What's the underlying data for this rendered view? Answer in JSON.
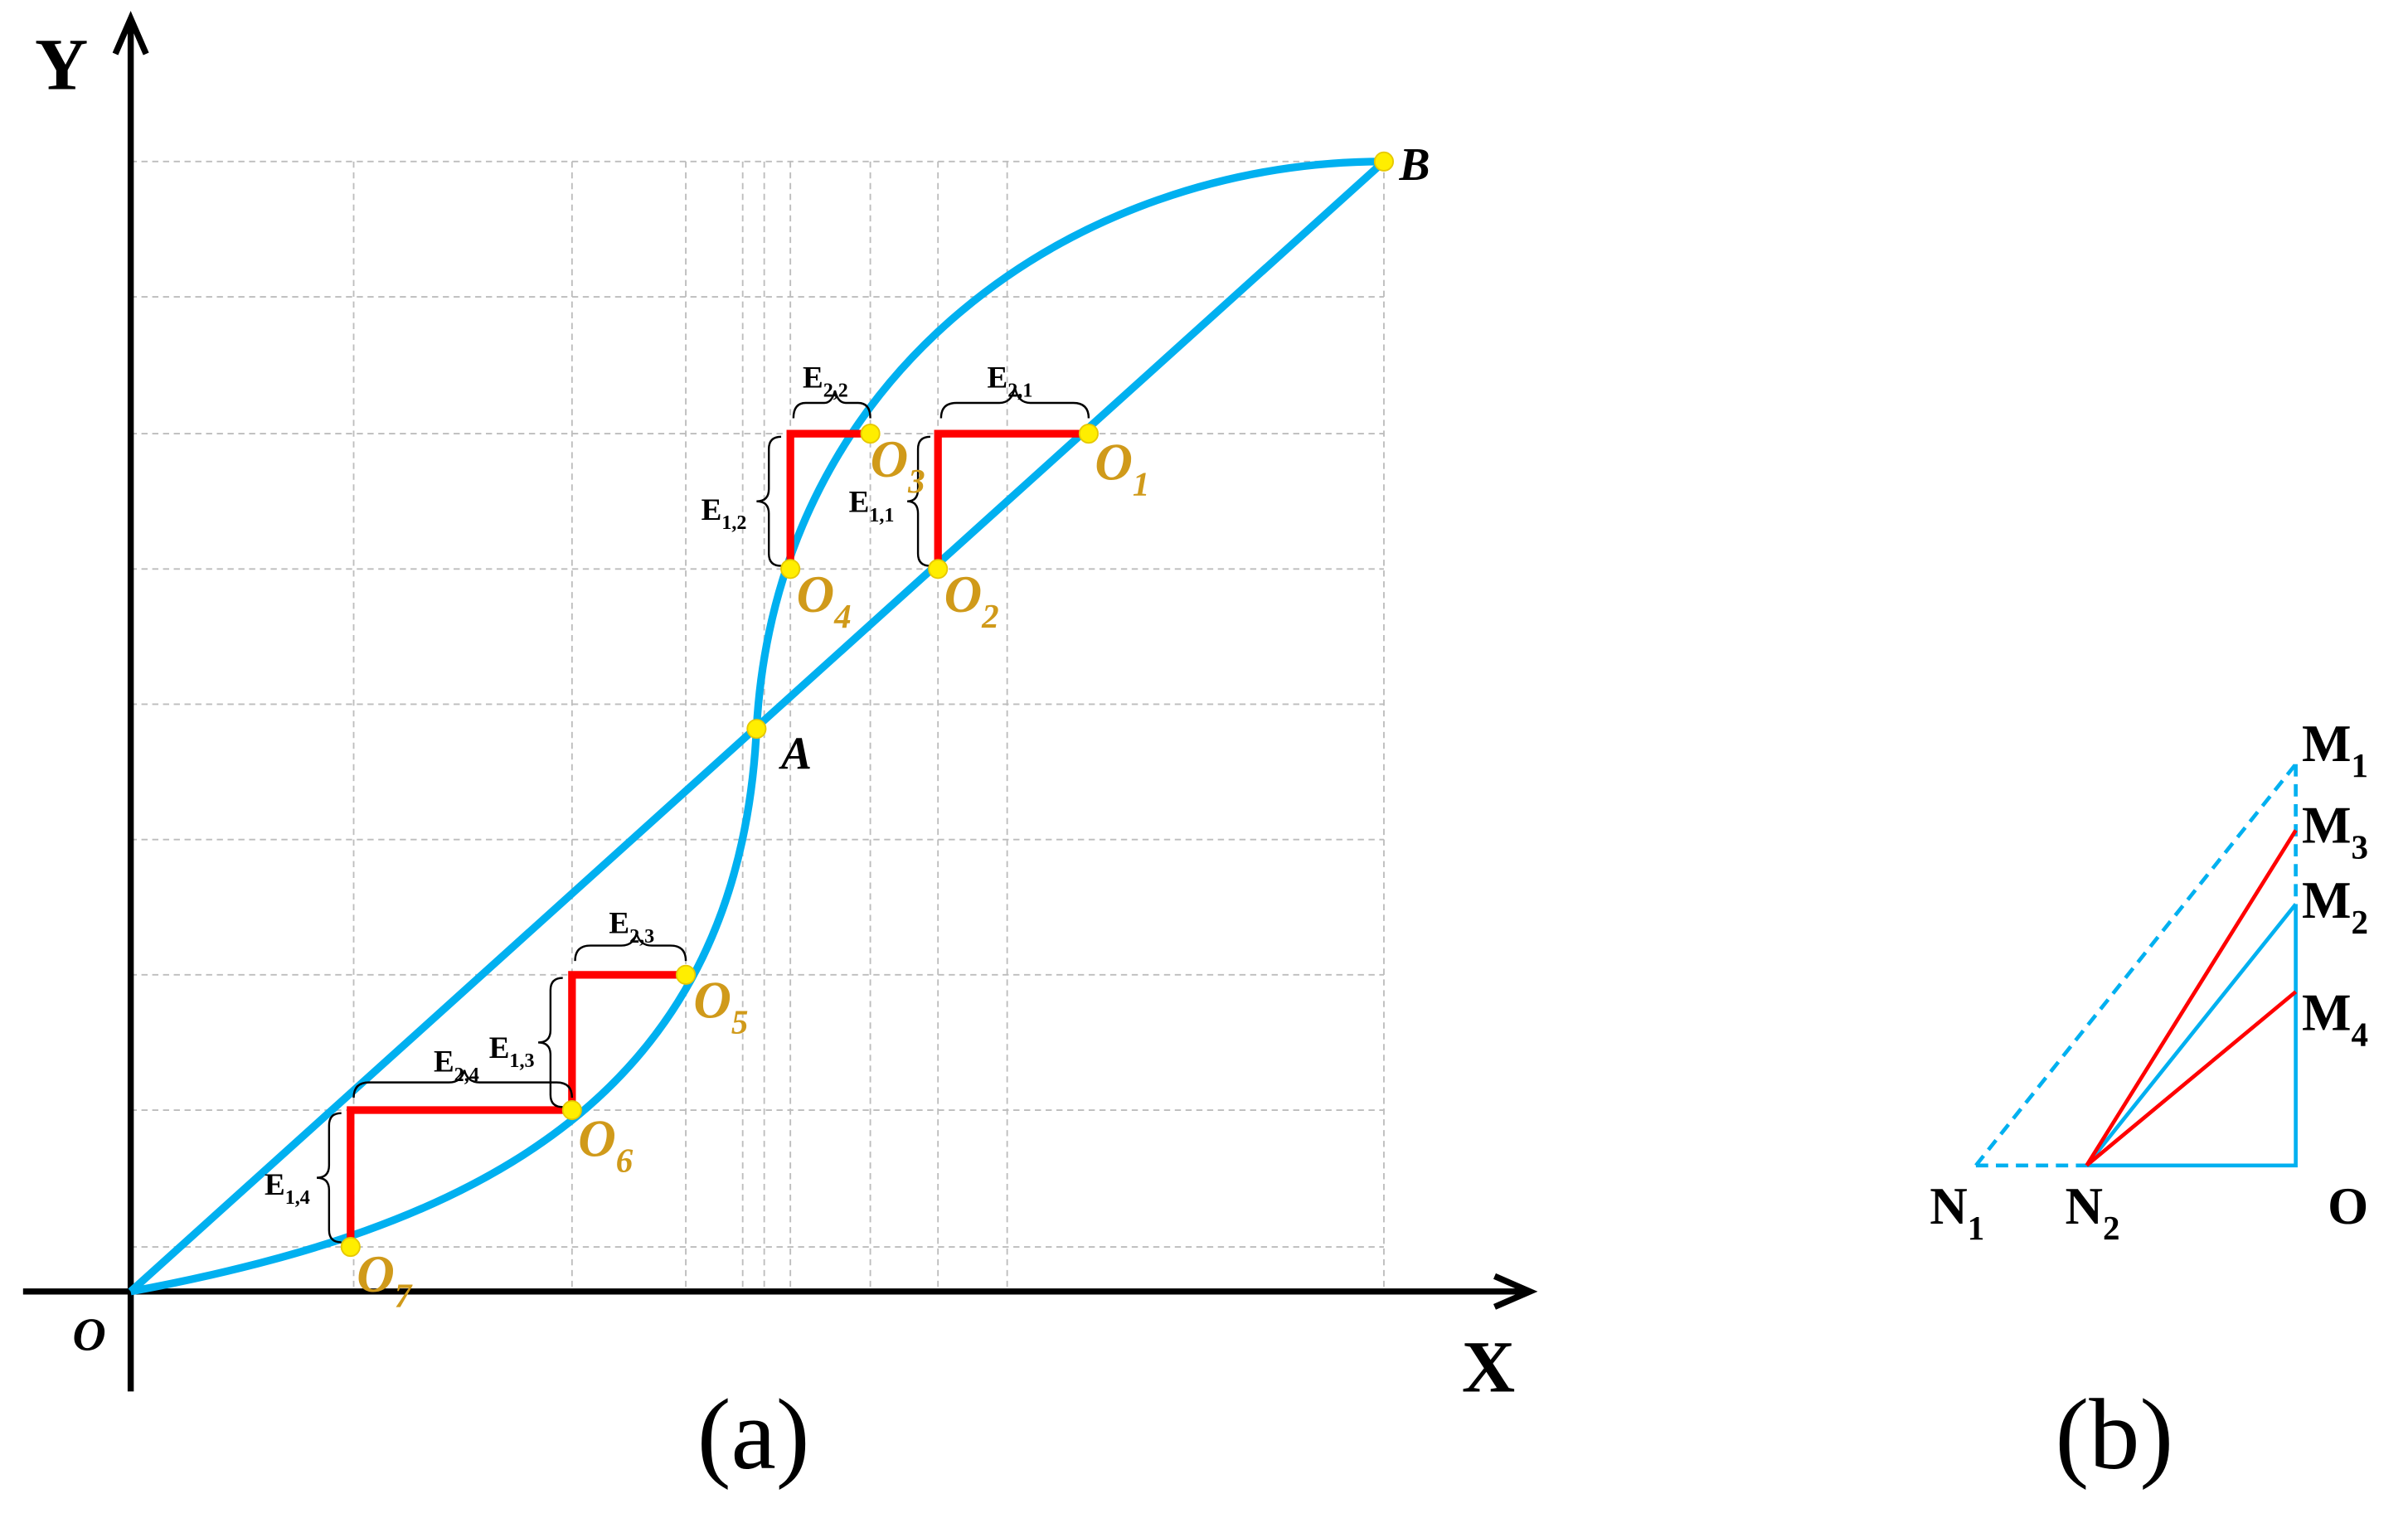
{
  "panel_a": {
    "caption": "(a)",
    "x_axis": "X",
    "y_axis": "Y",
    "origin": "O",
    "point_a": "A",
    "point_b": "B",
    "centers": [
      {
        "base": "O",
        "sub": "1"
      },
      {
        "base": "O",
        "sub": "2"
      },
      {
        "base": "O",
        "sub": "3"
      },
      {
        "base": "O",
        "sub": "4"
      },
      {
        "base": "O",
        "sub": "5"
      },
      {
        "base": "O",
        "sub": "6"
      },
      {
        "base": "O",
        "sub": "7"
      }
    ],
    "errors": [
      {
        "base": "E",
        "sub": "2,1"
      },
      {
        "base": "E",
        "sub": "1,1"
      },
      {
        "base": "E",
        "sub": "2,2"
      },
      {
        "base": "E",
        "sub": "1,2"
      },
      {
        "base": "E",
        "sub": "2,3"
      },
      {
        "base": "E",
        "sub": "1,3"
      },
      {
        "base": "E",
        "sub": "2,4"
      },
      {
        "base": "E",
        "sub": "1,4"
      }
    ]
  },
  "panel_b": {
    "caption": "(b)",
    "origin": "O",
    "points": [
      {
        "base": "M",
        "sub": "1"
      },
      {
        "base": "M",
        "sub": "3"
      },
      {
        "base": "M",
        "sub": "2"
      },
      {
        "base": "M",
        "sub": "4"
      },
      {
        "base": "N",
        "sub": "1"
      },
      {
        "base": "N",
        "sub": "2"
      }
    ]
  }
}
